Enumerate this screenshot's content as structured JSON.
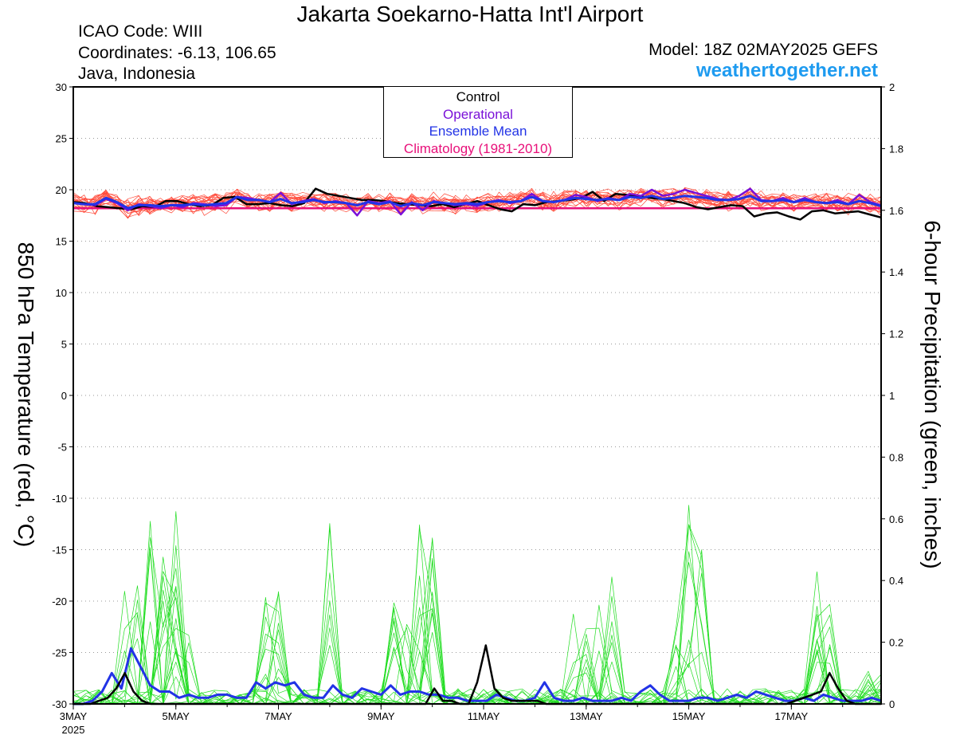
{
  "header": {
    "title": "Jakarta Soekarno-Hatta Int'l Airport",
    "icao": "ICAO Code: WIII",
    "coordinates": "Coordinates: -6.13, 106.65",
    "region": "Java, Indonesia",
    "model": "Model: 18Z 02MAY2025 GEFS",
    "site": "weathertogether.net"
  },
  "legend": {
    "control": "Control",
    "operational": "Operational",
    "ensemble_mean": "Ensemble Mean",
    "climatology": "Climatology (1981-2010)"
  },
  "colors": {
    "control": "#000000",
    "operational": "#7a10d8",
    "ensemble_mean": "#2233e6",
    "climatology": "#e8107a",
    "temp_members": "#ff4a3a",
    "precip_members": "#22dd22",
    "site": "#1e9bf0"
  },
  "chart_data": {
    "type": "line",
    "ylabel_left": "850 hPa Temperature (red, °C)",
    "ylabel_right": "6-hour Precipitation (green, inches)",
    "ylim_left": [
      -30,
      30
    ],
    "ylim_right": [
      0,
      2
    ],
    "yticks_left": [
      "30",
      "25",
      "20",
      "15",
      "10",
      "5",
      "0",
      "-5",
      "-10",
      "-15",
      "-20",
      "-25",
      "-30"
    ],
    "yticks_right": [
      "2",
      "1.8",
      "1.6",
      "1.4",
      "1.2",
      "1",
      "0.8",
      "0.6",
      "0.4",
      "0.2",
      "0"
    ],
    "xticks": [
      "3MAY",
      "5MAY",
      "7MAY",
      "9MAY",
      "11MAY",
      "13MAY",
      "15MAY",
      "17MAY"
    ],
    "xtick_year": "2025",
    "xrange_days": [
      3.0,
      18.75
    ],
    "grid": true,
    "temperature": {
      "climatology": 18.2,
      "control": [
        18.8,
        18.7,
        18.4,
        18.3,
        18.2,
        18.1,
        18.4,
        18.3,
        18.9,
        18.9,
        18.6,
        18.4,
        18.5,
        19.2,
        19.3,
        18.6,
        18.6,
        18.7,
        18.5,
        18.4,
        18.7,
        20.1,
        19.6,
        19.4,
        19.2,
        19.0,
        19.0,
        18.9,
        18.7,
        18.6,
        18.5,
        18.4,
        18.6,
        18.3,
        18.6,
        18.9,
        18.5,
        18.1,
        17.9,
        18.6,
        18.5,
        18.8,
        18.9,
        19.0,
        19.2,
        19.8,
        18.9,
        19.6,
        19.5,
        19.4,
        19.2,
        19.1,
        18.9,
        18.7,
        18.3,
        18.1,
        18.3,
        18.5,
        18.4,
        17.4,
        17.7,
        17.8,
        17.4,
        17.1,
        17.9,
        18.0,
        17.7,
        17.8,
        17.9,
        17.6,
        17.3
      ],
      "operational": [
        18.7,
        18.6,
        18.5,
        19.1,
        18.7,
        18.0,
        18.6,
        18.4,
        18.2,
        18.5,
        18.3,
        18.7,
        18.6,
        18.4,
        18.5,
        19.3,
        19.2,
        19.0,
        18.8,
        19.7,
        18.6,
        18.9,
        19.1,
        18.7,
        18.9,
        18.7,
        17.5,
        18.9,
        18.7,
        18.9,
        17.6,
        18.8,
        18.0,
        18.9,
        18.7,
        18.5,
        18.6,
        18.4,
        18.8,
        19.0,
        18.7,
        18.9,
        19.6,
        18.9,
        18.8,
        19.0,
        19.5,
        19.3,
        18.9,
        19.2,
        19.0,
        19.6,
        19.4,
        20.0,
        19.4,
        19.6,
        20.0,
        19.7,
        19.4,
        19.1,
        19.0,
        19.4,
        20.1,
        19.0,
        18.9,
        19.2,
        18.8,
        19.2,
        18.8,
        18.7,
        19.0,
        18.6,
        19.5,
        18.8,
        18.5
      ],
      "ensemble_mean": [
        18.7,
        18.6,
        18.6,
        19.2,
        18.8,
        18.2,
        18.5,
        18.5,
        18.4,
        18.5,
        18.5,
        18.6,
        18.5,
        18.6,
        18.7,
        19.3,
        19.0,
        19.0,
        18.8,
        19.1,
        18.7,
        18.8,
        19.0,
        18.8,
        18.8,
        18.7,
        18.5,
        18.8,
        18.6,
        18.8,
        18.4,
        18.7,
        18.5,
        18.8,
        18.7,
        18.6,
        18.7,
        18.6,
        18.8,
        18.9,
        18.8,
        18.9,
        19.3,
        18.9,
        18.8,
        19.0,
        19.2,
        19.1,
        19.0,
        19.1,
        19.0,
        19.3,
        19.2,
        19.4,
        19.1,
        19.2,
        19.4,
        19.3,
        19.2,
        19.0,
        19.0,
        19.1,
        19.4,
        18.9,
        18.9,
        19.0,
        18.8,
        19.0,
        18.8,
        18.7,
        18.8,
        18.6,
        18.9,
        18.7,
        18.4
      ]
    },
    "precipitation": {
      "control": [
        0,
        0,
        0,
        0.01,
        0.02,
        0.05,
        0.1,
        0.04,
        0.01,
        0,
        0,
        0,
        0,
        0,
        0,
        0,
        0,
        0,
        0,
        0,
        0,
        0,
        0,
        0,
        0,
        0,
        0,
        0,
        0,
        0,
        0,
        0,
        0,
        0,
        0,
        0,
        0,
        0,
        0,
        0,
        0,
        0,
        0.05,
        0.01,
        0.01,
        0,
        0,
        0.07,
        0.19,
        0.05,
        0.02,
        0.01,
        0.01,
        0.01,
        0.01,
        0,
        0,
        0,
        0,
        0,
        0,
        0,
        0,
        0,
        0,
        0,
        0,
        0,
        0,
        0,
        0,
        0,
        0,
        0,
        0,
        0,
        0,
        0,
        0,
        0,
        0,
        0,
        0,
        0,
        0.01,
        0.02,
        0.03,
        0.04,
        0.1,
        0.05,
        0.01,
        0,
        0,
        0,
        0
      ],
      "ensemble_mean": [
        0,
        0,
        0.01,
        0.04,
        0.1,
        0.05,
        0.18,
        0.12,
        0.06,
        0.04,
        0.04,
        0.02,
        0.03,
        0.02,
        0.02,
        0.03,
        0.03,
        0.02,
        0.02,
        0.07,
        0.05,
        0.07,
        0.06,
        0.07,
        0.03,
        0.02,
        0.02,
        0.06,
        0.03,
        0.02,
        0.05,
        0.04,
        0.03,
        0.06,
        0.03,
        0.04,
        0.04,
        0.03,
        0.03,
        0.02,
        0.02,
        0.01,
        0.01,
        0.01,
        0.03,
        0.02,
        0.01,
        0.01,
        0.02,
        0.07,
        0.02,
        0.01,
        0.01,
        0.02,
        0.01,
        0.01,
        0.01,
        0.02,
        0.01,
        0.04,
        0.06,
        0.03,
        0.01,
        0.01,
        0.01,
        0.02,
        0.02,
        0.01,
        0.02,
        0.03,
        0.02,
        0.04,
        0.03,
        0.02,
        0.01,
        0.01,
        0.02,
        0.01,
        0.03,
        0.02,
        0.01,
        0.01,
        0.01,
        0.02,
        0.01
      ]
    }
  }
}
